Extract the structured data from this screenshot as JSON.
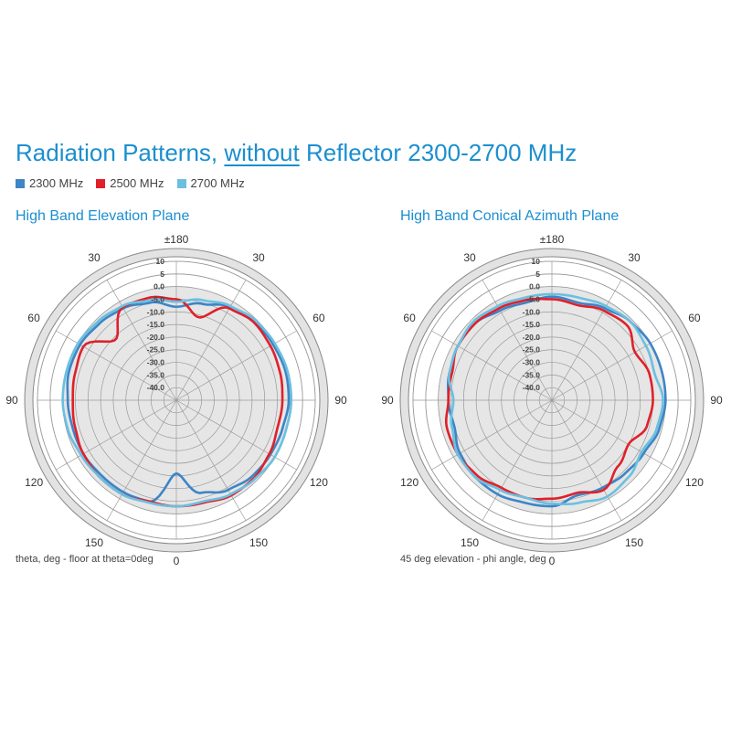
{
  "title": {
    "before": "Radiation Patterns, ",
    "underlined": "without",
    "after": " Reflector 2300-2700 MHz"
  },
  "legend": [
    {
      "label": "2300 MHz",
      "color": "#3d85c6"
    },
    {
      "label": "2500 MHz",
      "color": "#e0202a"
    },
    {
      "label": "2700 MHz",
      "color": "#6bbfe0"
    }
  ],
  "chart_data": [
    {
      "type": "polar-line",
      "title": "High Band Elevation Plane",
      "xlabel": "theta, deg - floor at theta=0deg",
      "angle_tick_labels": [
        "±180",
        "30",
        "60",
        "90",
        "120",
        "150",
        "0",
        "150",
        "120",
        "90",
        "60",
        "30"
      ],
      "radial_tick_labels": [
        "10",
        "5",
        "0.0",
        "-5.0",
        "-10.0",
        "-15.0",
        "-20.0",
        "-25.0",
        "-30.0",
        "-35.0",
        "-40.0"
      ],
      "rlim": [
        -45,
        10
      ],
      "series": [
        {
          "name": "2300 MHz",
          "color": "#3d85c6",
          "angles": [
            0,
            15,
            30,
            45,
            60,
            75,
            90,
            105,
            120,
            135,
            150,
            165,
            180,
            195,
            210,
            225,
            240,
            255,
            270,
            285,
            300,
            315,
            330,
            345
          ],
          "values": [
            -8,
            -5.5,
            -2.5,
            -1,
            -0.8,
            -0.3,
            -0.5,
            -1.5,
            -2,
            -2.5,
            -4,
            -7,
            -16,
            -3.5,
            -3,
            -3,
            -2.5,
            -2.5,
            -2,
            -1,
            -1,
            -2,
            -3,
            -5
          ]
        },
        {
          "name": "2500 MHz",
          "color": "#e0202a",
          "angles": [
            0,
            15,
            30,
            45,
            60,
            75,
            90,
            105,
            120,
            135,
            150,
            165,
            180,
            195,
            210,
            225,
            240,
            255,
            270,
            285,
            300,
            315,
            330,
            345
          ],
          "values": [
            -5,
            -11,
            -3,
            -1.5,
            -2,
            -2.5,
            -3,
            -3.5,
            -2.5,
            -1.5,
            -1.5,
            -3,
            -3,
            -3.5,
            -2,
            -2,
            -2.5,
            -3.5,
            -4,
            -3.5,
            -2.5,
            -11,
            -2.5,
            -3
          ]
        },
        {
          "name": "2700 MHz",
          "color": "#6bbfe0",
          "angles": [
            0,
            15,
            30,
            45,
            60,
            75,
            90,
            105,
            120,
            135,
            150,
            165,
            180,
            195,
            210,
            225,
            240,
            255,
            270,
            285,
            300,
            315,
            330,
            345
          ],
          "values": [
            -6,
            -4,
            -2,
            -0.5,
            0,
            0.5,
            0.5,
            0,
            0,
            -1,
            -2,
            -3.5,
            -3,
            -3,
            -2,
            -2,
            -1.5,
            -0.5,
            0,
            0,
            0,
            -1,
            -2,
            -4
          ]
        }
      ]
    },
    {
      "type": "polar-line",
      "title": "High Band Conical Azimuth Plane",
      "xlabel": "45 deg elevation - phi angle, deg",
      "angle_tick_labels": [
        "±180",
        "30",
        "60",
        "90",
        "120",
        "150",
        "0",
        "150",
        "120",
        "90",
        "60",
        "30"
      ],
      "radial_tick_labels": [
        "10",
        "5",
        "0.0",
        "-5.0",
        "-10.0",
        "-15.0",
        "-20.0",
        "-25.0",
        "-30.0",
        "-35.0",
        "-40.0"
      ],
      "rlim": [
        -45,
        10
      ],
      "series": [
        {
          "name": "2300 MHz",
          "color": "#3d85c6",
          "angles": [
            0,
            15,
            30,
            45,
            60,
            75,
            90,
            105,
            120,
            135,
            150,
            165,
            180,
            195,
            210,
            225,
            240,
            255,
            270,
            285,
            300,
            315,
            330,
            345
          ],
          "values": [
            -4,
            -5,
            -3,
            -1,
            0,
            0,
            0,
            -1,
            -3,
            -4,
            -5,
            -6,
            -3,
            -3,
            -2,
            -2,
            -3,
            -5,
            -4,
            -3,
            -2,
            -2,
            -4,
            -5
          ]
        },
        {
          "name": "2500 MHz",
          "color": "#e0202a",
          "angles": [
            0,
            15,
            30,
            45,
            60,
            75,
            90,
            105,
            120,
            135,
            150,
            165,
            180,
            195,
            210,
            225,
            240,
            255,
            270,
            285,
            300,
            315,
            330,
            345
          ],
          "values": [
            -5,
            -6,
            -4,
            -3,
            -7,
            -5,
            -5,
            -6,
            -10,
            -8,
            -4,
            -7,
            -6,
            -5,
            -5,
            -3,
            -2,
            -2,
            -4,
            -4,
            -2,
            -2,
            -3,
            -4
          ]
        },
        {
          "name": "2700 MHz",
          "color": "#6bbfe0",
          "angles": [
            0,
            15,
            30,
            45,
            60,
            75,
            90,
            105,
            120,
            135,
            150,
            165,
            180,
            195,
            210,
            225,
            240,
            255,
            270,
            285,
            300,
            315,
            330,
            345
          ],
          "values": [
            -3,
            -3,
            -2,
            -1,
            -2,
            -3,
            -1,
            -2,
            -4,
            -2,
            -1,
            -3,
            -4,
            -5,
            -4,
            -2,
            -2,
            -4,
            -6,
            -3,
            -2,
            -1,
            -2,
            -3
          ]
        }
      ]
    }
  ]
}
